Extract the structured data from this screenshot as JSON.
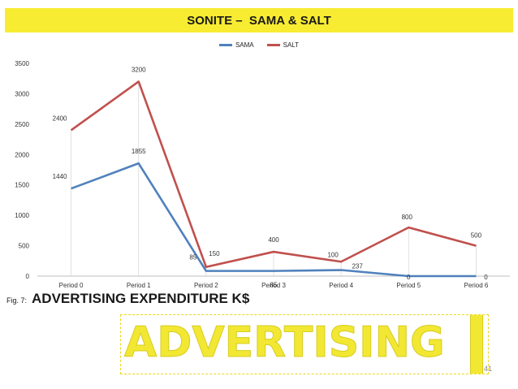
{
  "slide": {
    "title": "SONITE –  SAMA & SALT",
    "caption_prefix": "Fig. 7:",
    "caption": "ADVERTISING EXPENDITURE K$",
    "banner_word": "ADVERTISING",
    "page_number": "41",
    "colors": {
      "title_bg": "#f7ec32",
      "banner_fill": "#f2e833"
    }
  },
  "chart_data": {
    "type": "line",
    "categories": [
      "Period 0",
      "Period 1",
      "Period 2",
      "Period 3",
      "Period 4",
      "Period 5",
      "Period 6"
    ],
    "series": [
      {
        "name": "SAMA",
        "values": [
          1440,
          1855,
          85,
          85,
          100,
          0,
          0
        ],
        "color": "#4f81bd"
      },
      {
        "name": "SALT",
        "values": [
          2400,
          3200,
          150,
          400,
          237,
          800,
          500
        ],
        "color": "#c0504d"
      }
    ],
    "yticks": [
      0,
      500,
      1000,
      1500,
      2000,
      2500,
      3000,
      3500
    ],
    "ylim": [
      0,
      3500
    ],
    "legend": "top",
    "data_labels": true
  }
}
